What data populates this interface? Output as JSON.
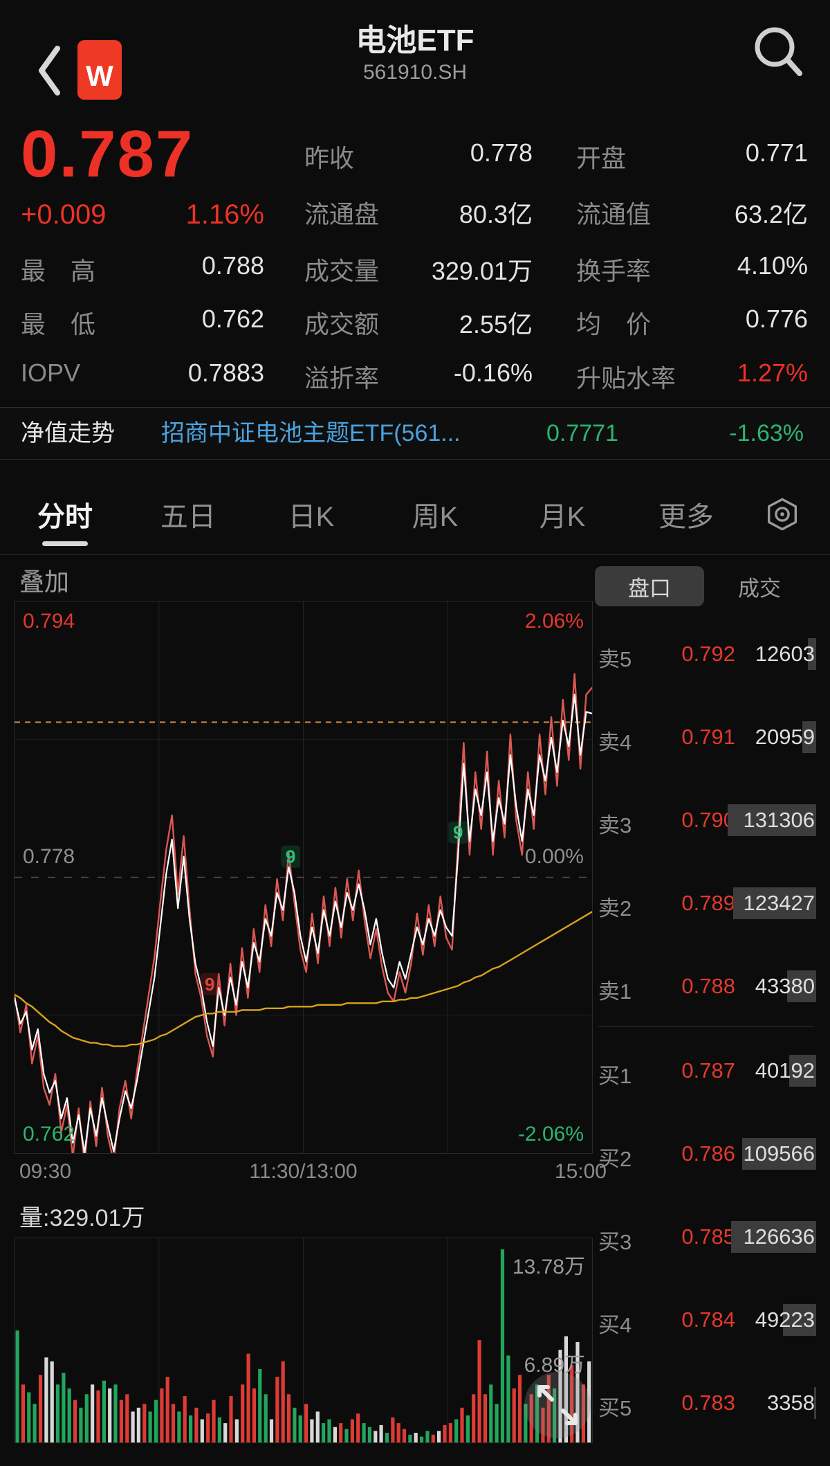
{
  "header": {
    "title": "电池ETF",
    "code": "561910.SH",
    "logo_text": "W"
  },
  "quote": {
    "last": "0.787",
    "change": "+0.009",
    "pct": "1.16%"
  },
  "stats": {
    "col1": [
      {
        "label": "最　高",
        "value": "0.788"
      },
      {
        "label": "最　低",
        "value": "0.762"
      },
      {
        "label": "IOPV",
        "value": "0.7883"
      }
    ],
    "col2": [
      {
        "label": "昨收",
        "value": "0.778"
      },
      {
        "label": "流通盘",
        "value": "80.3亿"
      },
      {
        "label": "成交量",
        "value": "329.01万"
      },
      {
        "label": "成交额",
        "value": "2.55亿"
      },
      {
        "label": "溢折率",
        "value": "-0.16%"
      }
    ],
    "col3": [
      {
        "label": "开盘",
        "value": "0.771"
      },
      {
        "label": "流通值",
        "value": "63.2亿"
      },
      {
        "label": "换手率",
        "value": "4.10%"
      },
      {
        "label": "均　价",
        "value": "0.776"
      },
      {
        "label": "升贴水率",
        "value": "1.27%",
        "highlight": "red"
      }
    ]
  },
  "nav_row": {
    "label": "净值走势",
    "fund": "招商中证电池主题ETF(561...",
    "nav": "0.7771",
    "pct": "-1.63%"
  },
  "tabs": {
    "items": [
      "分时",
      "五日",
      "日K",
      "周K",
      "月K",
      "更多"
    ],
    "active_index": 0
  },
  "overlay_label": "叠加",
  "palette": {
    "up_red": "#ee3126",
    "down_green": "#2bb571",
    "link_blue": "#4aa3e0",
    "last_price_orange": "#cf8a3c",
    "avg_yellow": "#d9a21b"
  },
  "chart_data": [
    {
      "type": "line",
      "name": "minute-price-chart",
      "x_ticks": [
        "09:30",
        "11:30/13:00",
        "15:00"
      ],
      "ylim": [
        0.762,
        0.794
      ],
      "grid": true,
      "legend_position": "none",
      "levels": {
        "top_left": "0.794",
        "top_right": "2.06%",
        "mid_left": "0.778",
        "mid_right": "0.00%",
        "bottom_left": "0.762",
        "bottom_right": "-2.06%"
      },
      "last_price": 0.787,
      "prev_close": 0.778,
      "series": [
        {
          "name": "nav-overlay-line",
          "color": "#dc5752",
          "width": 2.4,
          "values": [
            0.7712,
            0.769,
            0.7706,
            0.7672,
            0.7688,
            0.7658,
            0.7648,
            0.7666,
            0.7632,
            0.7648,
            0.7618,
            0.7646,
            0.7614,
            0.765,
            0.7624,
            0.7658,
            0.763,
            0.7615,
            0.7646,
            0.7662,
            0.764,
            0.7668,
            0.769,
            0.7712,
            0.7734,
            0.7766,
            0.7796,
            0.7816,
            0.777,
            0.7804,
            0.7762,
            0.7724,
            0.771,
            0.7688,
            0.7676,
            0.7724,
            0.7694,
            0.773,
            0.77,
            0.7739,
            0.771,
            0.775,
            0.7725,
            0.7764,
            0.774,
            0.7779,
            0.7755,
            0.7794,
            0.7765,
            0.7738,
            0.7725,
            0.7759,
            0.773,
            0.7769,
            0.774,
            0.7774,
            0.7745,
            0.7779,
            0.7755,
            0.7784,
            0.7755,
            0.7733,
            0.775,
            0.7728,
            0.7713,
            0.7708,
            0.7725,
            0.7713,
            0.773,
            0.7759,
            0.7735,
            0.7764,
            0.774,
            0.7769,
            0.7745,
            0.7738,
            0.7799,
            0.7858,
            0.7793,
            0.7841,
            0.7808,
            0.7853,
            0.7793,
            0.7836,
            0.7803,
            0.7863,
            0.7813,
            0.7793,
            0.7841,
            0.7808,
            0.7863,
            0.7828,
            0.7873,
            0.7833,
            0.7883,
            0.7848,
            0.7898,
            0.7843,
            0.7886,
            0.789
          ]
        },
        {
          "name": "price-line",
          "color": "#ffffff",
          "width": 2.2,
          "values": [
            0.771,
            0.7695,
            0.7702,
            0.768,
            0.7692,
            0.7666,
            0.7655,
            0.7662,
            0.764,
            0.7652,
            0.7626,
            0.7642,
            0.762,
            0.7646,
            0.763,
            0.7652,
            0.7636,
            0.7621,
            0.764,
            0.7656,
            0.7646,
            0.7662,
            0.7682,
            0.7702,
            0.7722,
            0.7752,
            0.7782,
            0.7802,
            0.7762,
            0.7792,
            0.7756,
            0.773,
            0.7716,
            0.7696,
            0.7682,
            0.7716,
            0.77,
            0.7722,
            0.7706,
            0.7731,
            0.7716,
            0.7742,
            0.7731,
            0.7756,
            0.7746,
            0.7771,
            0.7761,
            0.7786,
            0.7771,
            0.7746,
            0.7731,
            0.7751,
            0.7736,
            0.7761,
            0.7746,
            0.7766,
            0.7751,
            0.7771,
            0.7761,
            0.7776,
            0.7761,
            0.7741,
            0.7756,
            0.7736,
            0.7721,
            0.7716,
            0.7731,
            0.7721,
            0.7736,
            0.7751,
            0.7741,
            0.7756,
            0.7746,
            0.7761,
            0.7751,
            0.7746,
            0.7791,
            0.7846,
            0.7801,
            0.7831,
            0.7816,
            0.7841,
            0.7801,
            0.7826,
            0.7811,
            0.7851,
            0.7821,
            0.7801,
            0.7831,
            0.7816,
            0.7851,
            0.7836,
            0.7861,
            0.7841,
            0.7871,
            0.7856,
            0.7886,
            0.7851,
            0.7876,
            0.7875
          ]
        },
        {
          "name": "avg-price-line",
          "color": "#d9a21b",
          "width": 2.4,
          "values": [
            0.7712,
            0.771,
            0.7707,
            0.7705,
            0.7702,
            0.7699,
            0.7696,
            0.7694,
            0.7691,
            0.7689,
            0.7687,
            0.7686,
            0.7685,
            0.7684,
            0.7684,
            0.7683,
            0.7683,
            0.7682,
            0.7682,
            0.7682,
            0.7683,
            0.7683,
            0.7684,
            0.7685,
            0.7686,
            0.7688,
            0.7689,
            0.7691,
            0.7693,
            0.7695,
            0.7697,
            0.7699,
            0.77,
            0.7701,
            0.7701,
            0.7702,
            0.7702,
            0.7702,
            0.7702,
            0.7703,
            0.7703,
            0.7703,
            0.7703,
            0.7704,
            0.7704,
            0.7704,
            0.7704,
            0.7705,
            0.7705,
            0.7705,
            0.7705,
            0.7705,
            0.7706,
            0.7706,
            0.7706,
            0.7706,
            0.7706,
            0.7707,
            0.7707,
            0.7707,
            0.7707,
            0.7707,
            0.7707,
            0.7708,
            0.7708,
            0.7708,
            0.7709,
            0.7709,
            0.771,
            0.771,
            0.7711,
            0.7712,
            0.7713,
            0.7714,
            0.7715,
            0.7716,
            0.7717,
            0.7719,
            0.772,
            0.7722,
            0.7723,
            0.7725,
            0.7727,
            0.7728,
            0.773,
            0.7732,
            0.7734,
            0.7736,
            0.7738,
            0.774,
            0.7742,
            0.7744,
            0.7746,
            0.7748,
            0.775,
            0.7752,
            0.7754,
            0.7756,
            0.7758,
            0.776
          ]
        }
      ],
      "markers": [
        {
          "f": 0.338,
          "p": 0.7718,
          "label": "9",
          "color": "#e0453a",
          "bg": "rgba(190,40,40,0.22)"
        },
        {
          "f": 0.478,
          "p": 0.7792,
          "label": "9",
          "color": "#2fc07c",
          "bg": "rgba(25,150,85,0.22)"
        },
        {
          "f": 0.768,
          "p": 0.7806,
          "label": "9",
          "color": "#2fc07c",
          "bg": "rgba(25,150,85,0.22)"
        }
      ]
    },
    {
      "type": "bar",
      "name": "minute-volume-chart",
      "pane_label": "量:329.01万",
      "y_labels": {
        "max": "13.78万",
        "mid": "6.89万"
      },
      "colors": {
        "g": "#21a65c",
        "r": "#dd3b35",
        "w": "#d8d8d8"
      },
      "bars": [
        [
          0.58,
          "g"
        ],
        [
          0.3,
          "r"
        ],
        [
          0.26,
          "g"
        ],
        [
          0.2,
          "g"
        ],
        [
          0.35,
          "r"
        ],
        [
          0.44,
          "w"
        ],
        [
          0.42,
          "w"
        ],
        [
          0.3,
          "g"
        ],
        [
          0.36,
          "g"
        ],
        [
          0.28,
          "g"
        ],
        [
          0.22,
          "r"
        ],
        [
          0.18,
          "g"
        ],
        [
          0.25,
          "g"
        ],
        [
          0.3,
          "w"
        ],
        [
          0.27,
          "r"
        ],
        [
          0.32,
          "g"
        ],
        [
          0.28,
          "w"
        ],
        [
          0.3,
          "g"
        ],
        [
          0.22,
          "r"
        ],
        [
          0.25,
          "r"
        ],
        [
          0.16,
          "w"
        ],
        [
          0.18,
          "w"
        ],
        [
          0.2,
          "r"
        ],
        [
          0.16,
          "g"
        ],
        [
          0.22,
          "g"
        ],
        [
          0.28,
          "r"
        ],
        [
          0.34,
          "r"
        ],
        [
          0.2,
          "r"
        ],
        [
          0.16,
          "g"
        ],
        [
          0.24,
          "r"
        ],
        [
          0.14,
          "g"
        ],
        [
          0.18,
          "r"
        ],
        [
          0.12,
          "w"
        ],
        [
          0.15,
          "r"
        ],
        [
          0.22,
          "r"
        ],
        [
          0.13,
          "g"
        ],
        [
          0.1,
          "w"
        ],
        [
          0.24,
          "r"
        ],
        [
          0.12,
          "w"
        ],
        [
          0.3,
          "r"
        ],
        [
          0.46,
          "r"
        ],
        [
          0.28,
          "r"
        ],
        [
          0.38,
          "g"
        ],
        [
          0.25,
          "g"
        ],
        [
          0.12,
          "w"
        ],
        [
          0.34,
          "r"
        ],
        [
          0.42,
          "r"
        ],
        [
          0.25,
          "r"
        ],
        [
          0.18,
          "g"
        ],
        [
          0.14,
          "g"
        ],
        [
          0.2,
          "r"
        ],
        [
          0.12,
          "w"
        ],
        [
          0.16,
          "w"
        ],
        [
          0.1,
          "g"
        ],
        [
          0.12,
          "g"
        ],
        [
          0.08,
          "w"
        ],
        [
          0.1,
          "r"
        ],
        [
          0.07,
          "g"
        ],
        [
          0.12,
          "r"
        ],
        [
          0.15,
          "r"
        ],
        [
          0.1,
          "g"
        ],
        [
          0.08,
          "g"
        ],
        [
          0.06,
          "w"
        ],
        [
          0.09,
          "w"
        ],
        [
          0.05,
          "g"
        ],
        [
          0.13,
          "r"
        ],
        [
          0.1,
          "r"
        ],
        [
          0.07,
          "r"
        ],
        [
          0.04,
          "g"
        ],
        [
          0.05,
          "w"
        ],
        [
          0.03,
          "g"
        ],
        [
          0.06,
          "g"
        ],
        [
          0.04,
          "r"
        ],
        [
          0.06,
          "w"
        ],
        [
          0.09,
          "r"
        ],
        [
          0.1,
          "r"
        ],
        [
          0.12,
          "g"
        ],
        [
          0.18,
          "r"
        ],
        [
          0.14,
          "g"
        ],
        [
          0.25,
          "r"
        ],
        [
          0.53,
          "r"
        ],
        [
          0.25,
          "r"
        ],
        [
          0.3,
          "g"
        ],
        [
          0.2,
          "g"
        ],
        [
          1.0,
          "g"
        ],
        [
          0.45,
          "g"
        ],
        [
          0.28,
          "r"
        ],
        [
          0.35,
          "r"
        ],
        [
          0.2,
          "g"
        ],
        [
          0.25,
          "r"
        ],
        [
          0.3,
          "g"
        ],
        [
          0.18,
          "r"
        ],
        [
          0.35,
          "r"
        ],
        [
          0.28,
          "g"
        ],
        [
          0.48,
          "w"
        ],
        [
          0.55,
          "w"
        ],
        [
          0.4,
          "r"
        ],
        [
          0.52,
          "w"
        ],
        [
          0.3,
          "r"
        ],
        [
          0.42,
          "w"
        ]
      ]
    }
  ],
  "orderbook": {
    "tabs": {
      "items": [
        "盘口",
        "成交"
      ],
      "active_index": 0
    },
    "asks": [
      {
        "label": "卖5",
        "price": "0.792",
        "vol": "12603"
      },
      {
        "label": "卖4",
        "price": "0.791",
        "vol": "20959"
      },
      {
        "label": "卖3",
        "price": "0.790",
        "vol": "131306"
      },
      {
        "label": "卖2",
        "price": "0.789",
        "vol": "123427"
      },
      {
        "label": "卖1",
        "price": "0.788",
        "vol": "43380"
      }
    ],
    "bids": [
      {
        "label": "买1",
        "price": "0.787",
        "vol": "40192"
      },
      {
        "label": "买2",
        "price": "0.786",
        "vol": "109566"
      },
      {
        "label": "买3",
        "price": "0.785",
        "vol": "126636"
      },
      {
        "label": "买4",
        "price": "0.784",
        "vol": "49223"
      },
      {
        "label": "买5",
        "price": "0.783",
        "vol": "3358"
      }
    ]
  }
}
